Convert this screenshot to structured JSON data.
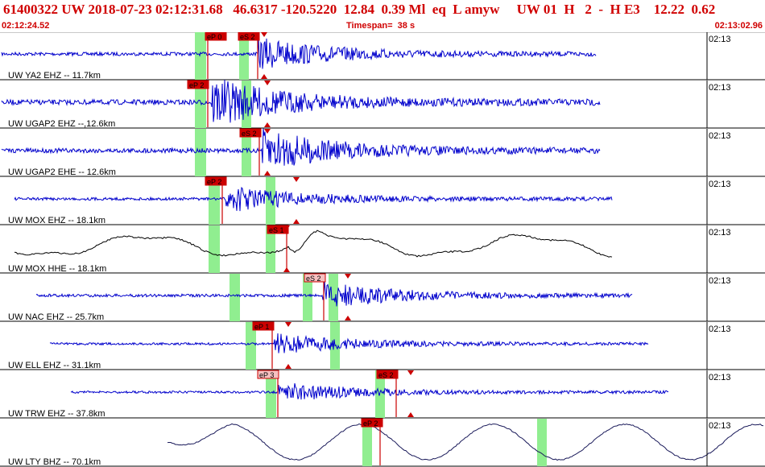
{
  "header": {
    "title": "61400322 UW 2018-07-23 02:12:31.68   46.6317 -120.5220  12.84  0.39 Ml  eq  L amyw     UW 01  H   2  -  H E3    12.22  0.62",
    "start_time": "02:12:24.52",
    "timespan": "Timespan=  38 s",
    "end_time": "02:13:02.96"
  },
  "colors": {
    "trace": "#0000cc",
    "trace_lowfreq": "#000000",
    "trace_lty": "#1a1a5a",
    "pick": "#cc0000",
    "window": "#90ee90",
    "title": "#d00000"
  },
  "traces": [
    {
      "label": "UW YA2 EHZ -- 11.7km",
      "time": "02:13",
      "style": "hf",
      "amp": 6,
      "onset": 320,
      "picks": [
        "eP 0",
        "eS 2"
      ]
    },
    {
      "label": "UW UGAP2 EHZ --,12.6km",
      "time": "02:13",
      "style": "hf",
      "amp": 9,
      "onset": 262,
      "picks": [
        "eP 2"
      ]
    },
    {
      "label": "UW UGAP2 EHE -- 12.6km",
      "time": "02:13",
      "style": "hf",
      "amp": 8,
      "onset": 322,
      "picks": [
        "eS 2"
      ]
    },
    {
      "label": "UW MOX EHZ -- 18.1km",
      "time": "02:13",
      "style": "hf",
      "amp": 5,
      "onset": 280,
      "picks": [
        "eP 2"
      ]
    },
    {
      "label": "UW MOX HHE -- 18.1km",
      "time": "02:13",
      "style": "lf",
      "amp": 12,
      "onset": 358,
      "picks": [
        "eS 1"
      ]
    },
    {
      "label": "UW NAC EHZ -- 25.7km",
      "time": "02:13",
      "style": "hf",
      "amp": 5,
      "onset": 400,
      "picks": [
        "eS 2"
      ]
    },
    {
      "label": "UW ELL EHZ -- 31.1km",
      "time": "02:13",
      "style": "hf",
      "amp": 4,
      "onset": 340,
      "picks": [
        "eP 1"
      ]
    },
    {
      "label": "UW TRW EHZ -- 37.8km",
      "time": "02:13",
      "style": "hf",
      "amp": 4,
      "onset": 345,
      "picks": [
        "eP 3",
        "eS 2"
      ]
    },
    {
      "label": "UW LTY BHZ -- 70.1km",
      "time": "02:13",
      "style": "vlf",
      "amp": 22,
      "onset": 470,
      "picks": [
        "eP 2"
      ]
    }
  ]
}
